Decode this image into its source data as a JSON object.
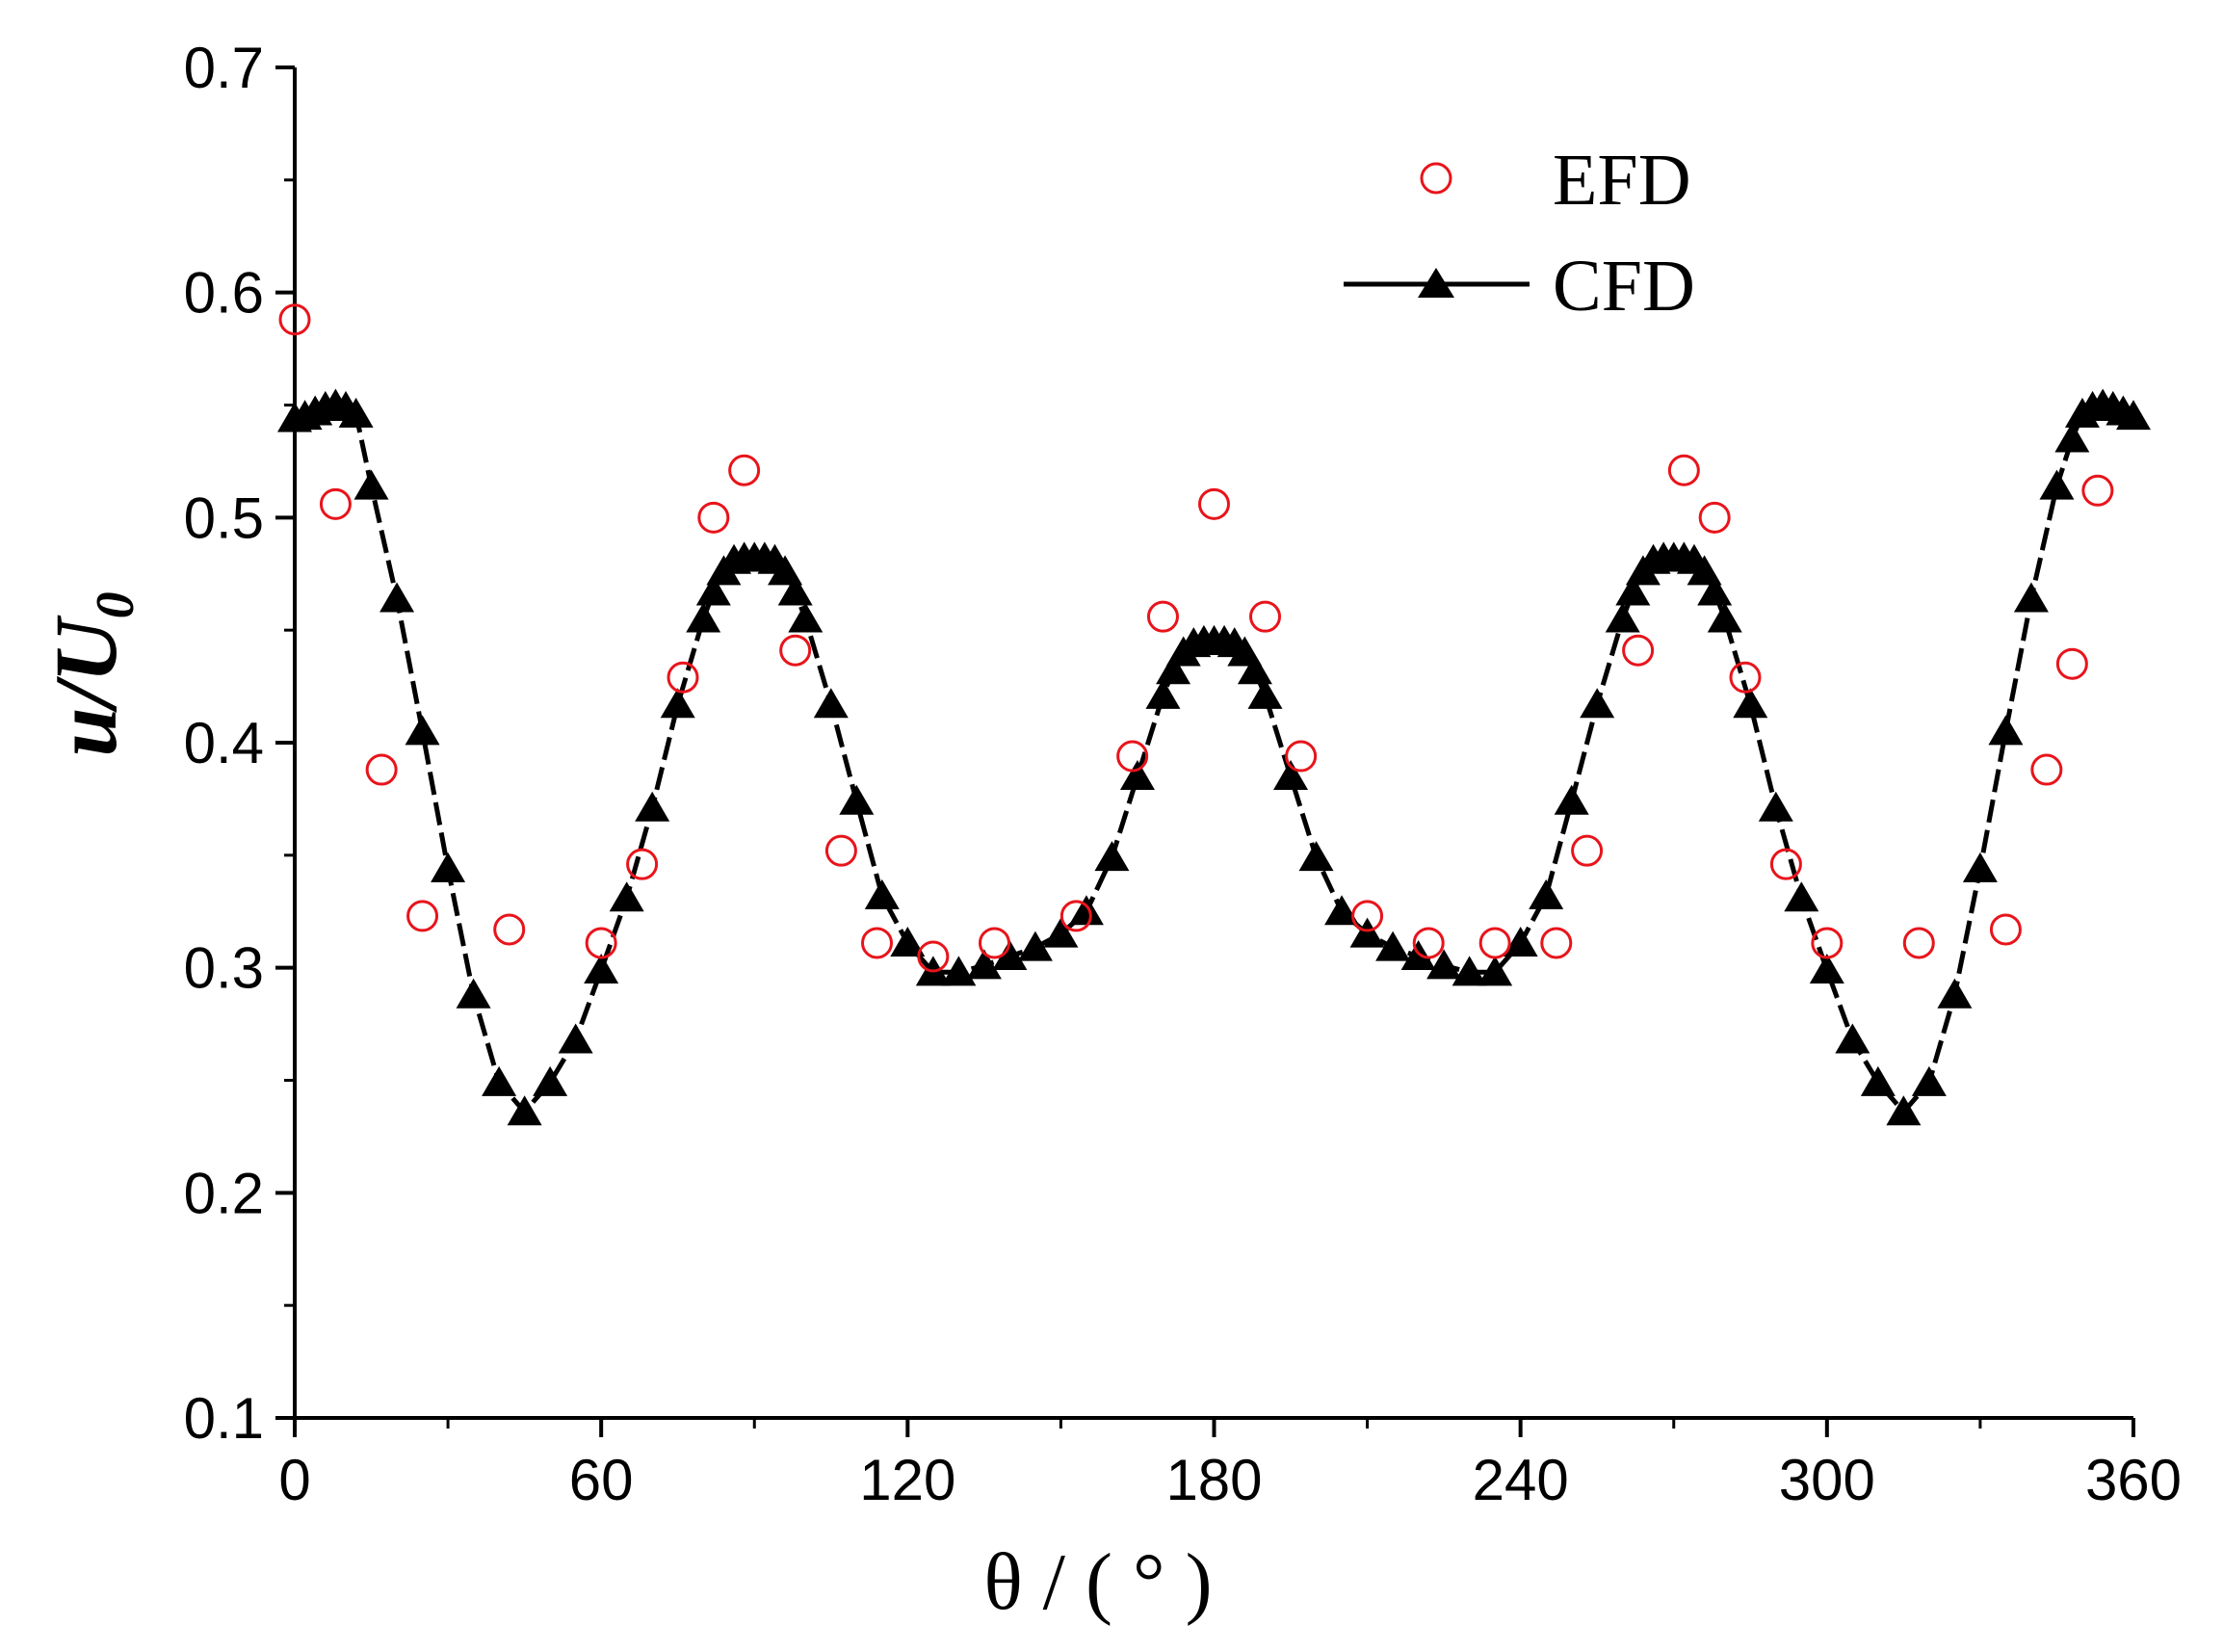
{
  "chart_data": {
    "type": "scatter",
    "title": "",
    "xlabel": "θ / ( ° )",
    "ylabel": {
      "main": "u/U",
      "sub": "0"
    },
    "xlim": [
      0,
      360
    ],
    "ylim": [
      0.1,
      0.7
    ],
    "xticks": [
      0,
      60,
      120,
      180,
      240,
      300,
      360
    ],
    "xtick_labels": [
      "0",
      "60",
      "120",
      "180",
      "240",
      "300",
      "360"
    ],
    "yticks": [
      0.1,
      0.2,
      0.3,
      0.4,
      0.5,
      0.6,
      0.7
    ],
    "ytick_labels": [
      "0.1",
      "0.2",
      "0.3",
      "0.4",
      "0.5",
      "0.6",
      "0.7"
    ],
    "grid": false,
    "legend_position": "top-right",
    "legend": [
      "EFD",
      "CFD"
    ],
    "series": [
      {
        "name": "EFD",
        "style": "open-circle",
        "color": "#e8141b",
        "x": [
          0,
          8,
          17,
          25,
          42,
          60,
          68,
          76,
          82,
          88,
          98,
          107,
          114,
          125,
          137,
          153,
          164,
          170,
          180,
          190,
          197,
          210,
          222,
          235,
          247,
          253,
          263,
          272,
          278,
          284,
          292,
          300,
          318,
          335,
          343,
          348,
          353
        ],
        "y": [
          0.588,
          0.506,
          0.388,
          0.323,
          0.317,
          0.311,
          0.346,
          0.429,
          0.5,
          0.521,
          0.441,
          0.352,
          0.311,
          0.305,
          0.311,
          0.323,
          0.394,
          0.456,
          0.506,
          0.456,
          0.394,
          0.323,
          0.311,
          0.311,
          0.311,
          0.352,
          0.441,
          0.521,
          0.5,
          0.429,
          0.346,
          0.311,
          0.311,
          0.317,
          0.388,
          0.435,
          0.512
        ]
      },
      {
        "name": "CFD",
        "style": "line-filled-triangle",
        "color": "#000000",
        "x": [
          0,
          2,
          4,
          6,
          8,
          10,
          12,
          15,
          20,
          25,
          30,
          35,
          40,
          45,
          50,
          55,
          60,
          65,
          70,
          75,
          80,
          82,
          84,
          86,
          88,
          90,
          92,
          94,
          96,
          98,
          100,
          105,
          110,
          115,
          120,
          125,
          130,
          135,
          140,
          145,
          150,
          155,
          160,
          165,
          170,
          172,
          174,
          176,
          178,
          180,
          182,
          184,
          186,
          188,
          190,
          195,
          200,
          205,
          210,
          215,
          220,
          225,
          230,
          235,
          240,
          245,
          250,
          255,
          260,
          262,
          264,
          266,
          268,
          270,
          272,
          274,
          276,
          278,
          280,
          285,
          290,
          295,
          300,
          305,
          310,
          315,
          320,
          325,
          330,
          335,
          340,
          345,
          348,
          350,
          352,
          354,
          356,
          358,
          360
        ],
        "y": [
          0.544,
          0.545,
          0.547,
          0.549,
          0.55,
          0.549,
          0.546,
          0.514,
          0.464,
          0.405,
          0.344,
          0.288,
          0.249,
          0.236,
          0.249,
          0.268,
          0.299,
          0.331,
          0.371,
          0.417,
          0.455,
          0.467,
          0.476,
          0.481,
          0.482,
          0.482,
          0.482,
          0.481,
          0.476,
          0.467,
          0.455,
          0.417,
          0.374,
          0.332,
          0.311,
          0.298,
          0.298,
          0.301,
          0.305,
          0.309,
          0.315,
          0.325,
          0.349,
          0.385,
          0.421,
          0.432,
          0.44,
          0.444,
          0.445,
          0.445,
          0.445,
          0.444,
          0.44,
          0.432,
          0.421,
          0.385,
          0.349,
          0.325,
          0.315,
          0.309,
          0.305,
          0.301,
          0.298,
          0.298,
          0.311,
          0.332,
          0.374,
          0.417,
          0.455,
          0.467,
          0.476,
          0.481,
          0.482,
          0.482,
          0.482,
          0.481,
          0.476,
          0.467,
          0.455,
          0.417,
          0.371,
          0.331,
          0.299,
          0.268,
          0.249,
          0.236,
          0.249,
          0.288,
          0.344,
          0.405,
          0.464,
          0.514,
          0.535,
          0.546,
          0.549,
          0.55,
          0.549,
          0.547,
          0.545
        ]
      }
    ]
  }
}
